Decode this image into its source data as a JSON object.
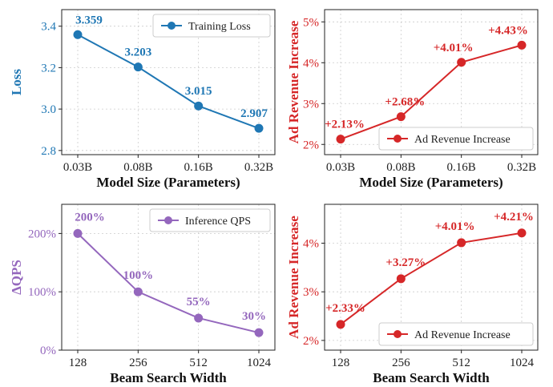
{
  "chart_data": [
    {
      "type": "line",
      "xlabel": "Model Size (Parameters)",
      "ylabel": "Loss",
      "categories": [
        "0.03B",
        "0.08B",
        "0.16B",
        "0.32B"
      ],
      "series": [
        {
          "name": "Training Loss",
          "values": [
            3.359,
            3.203,
            3.015,
            2.907
          ]
        }
      ],
      "data_labels": [
        "3.359",
        "3.203",
        "3.015",
        "2.907"
      ],
      "yticks": [
        "2.8",
        "3.0",
        "3.2",
        "3.4"
      ],
      "ylim": [
        2.78,
        3.48
      ],
      "grid": true,
      "legend_position": "top-right",
      "color": "#1f77b4",
      "ylabel_color": "#1f77b4"
    },
    {
      "type": "line",
      "xlabel": "Model Size (Parameters)",
      "ylabel": "Ad Revenue Increase",
      "categories": [
        "0.03B",
        "0.08B",
        "0.16B",
        "0.32B"
      ],
      "series": [
        {
          "name": "Ad Revenue Increase",
          "values": [
            2.13,
            2.68,
            4.01,
            4.43
          ]
        }
      ],
      "data_labels": [
        "+2.13%",
        "+2.68%",
        "+4.01%",
        "+4.43%"
      ],
      "yticks": [
        "2%",
        "3%",
        "4%",
        "5%"
      ],
      "ylim": [
        1.75,
        5.3
      ],
      "grid": true,
      "legend_position": "bottom-right",
      "color": "#d62728",
      "ylabel_color": "#d62728"
    },
    {
      "type": "line",
      "xlabel": "Beam Search Width",
      "ylabel": "ΔQPS",
      "categories": [
        "128",
        "256",
        "512",
        "1024"
      ],
      "series": [
        {
          "name": "Inference QPS",
          "values": [
            200,
            100,
            55,
            30
          ]
        }
      ],
      "data_labels": [
        "200%",
        "100%",
        "55%",
        "30%"
      ],
      "yticks": [
        "0%",
        "100%",
        "200%"
      ],
      "ylim": [
        0,
        250
      ],
      "grid": true,
      "legend_position": "top-right",
      "color": "#9467bd",
      "ylabel_color": "#9467bd"
    },
    {
      "type": "line",
      "xlabel": "Beam Search Width",
      "ylabel": "Ad Revenue Increase",
      "categories": [
        "128",
        "256",
        "512",
        "1024"
      ],
      "series": [
        {
          "name": "Ad Revenue Increase",
          "values": [
            2.33,
            3.27,
            4.01,
            4.21
          ]
        }
      ],
      "data_labels": [
        "+2.33%",
        "+3.27%",
        "+4.01%",
        "+4.21%"
      ],
      "yticks": [
        "2%",
        "3%",
        "4%"
      ],
      "ylim": [
        1.8,
        4.8
      ],
      "grid": true,
      "legend_position": "bottom-right",
      "color": "#d62728",
      "ylabel_color": "#d62728"
    }
  ]
}
